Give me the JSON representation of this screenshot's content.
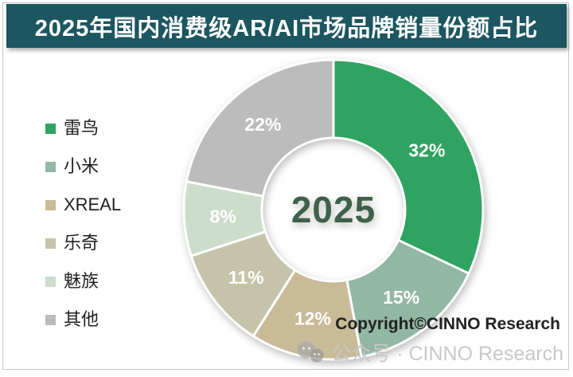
{
  "title": "2025年国内消费级AR/AI市场品牌销量份额占比",
  "title_bar_color": "#1c5660",
  "copyright": "Copyright©CINNO Research",
  "watermark": {
    "icon": "wechat-icon",
    "text": "公众号 · CINNO Research"
  },
  "chart_data": {
    "type": "pie",
    "subtype": "donut",
    "title": "2025年国内消费级AR/AI市场品牌销量份额占比",
    "center_label": "2025",
    "categories": [
      "雷鸟",
      "小米",
      "XREAL",
      "乐奇",
      "魅族",
      "其他"
    ],
    "values": [
      32,
      15,
      12,
      11,
      8,
      22
    ],
    "unit": "%",
    "labels": [
      "32%",
      "15%",
      "12%",
      "11%",
      "8%",
      "22%"
    ],
    "colors": [
      "#2fa360",
      "#92b7a4",
      "#c9ba98",
      "#c5c4aa",
      "#cdddcb",
      "#bcbcbc"
    ],
    "label_color": "#ffffff",
    "center_label_color": "#3e6149",
    "start_angle_deg": 0,
    "direction": "clockwise",
    "legend_position": "left",
    "grid": false
  }
}
